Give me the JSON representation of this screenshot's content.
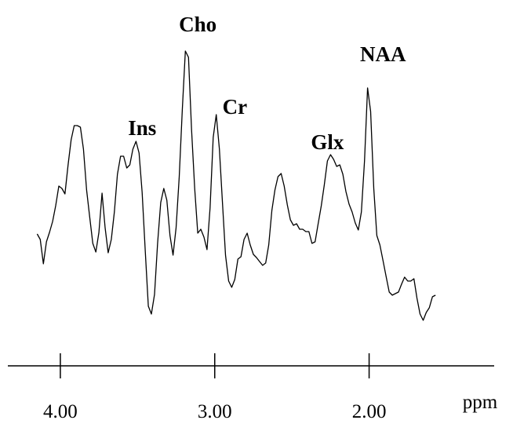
{
  "chart_data": {
    "type": "line",
    "x_label": "ppm",
    "annotations": [
      {
        "text": "Ins",
        "x": 3.47
      },
      {
        "text": "Cho",
        "x": 3.11
      },
      {
        "text": "Cr",
        "x": 2.87
      },
      {
        "text": "Glx",
        "x": 2.27
      },
      {
        "text": "NAA",
        "x": 1.91
      }
    ],
    "xlim": [
      4.34,
      1.19
    ],
    "xticks": [
      {
        "value": 4,
        "label": "4.00"
      },
      {
        "value": 3,
        "label": "3.00"
      },
      {
        "value": 2,
        "label": "2.00"
      }
    ],
    "ylim": [
      0,
      440
    ],
    "color": "#000000",
    "x": [
      4.15,
      4.13,
      4.11,
      4.09,
      4.07,
      4.05,
      4.03,
      4.01,
      3.99,
      3.97,
      3.95,
      3.93,
      3.91,
      3.89,
      3.87,
      3.85,
      3.83,
      3.81,
      3.79,
      3.77,
      3.75,
      3.73,
      3.71,
      3.69,
      3.67,
      3.65,
      3.63,
      3.61,
      3.59,
      3.57,
      3.55,
      3.53,
      3.51,
      3.49,
      3.47,
      3.45,
      3.43,
      3.41,
      3.39,
      3.37,
      3.35,
      3.33,
      3.31,
      3.29,
      3.27,
      3.25,
      3.23,
      3.21,
      3.19,
      3.17,
      3.15,
      3.13,
      3.11,
      3.09,
      3.07,
      3.05,
      3.03,
      3.01,
      2.99,
      2.97,
      2.95,
      2.93,
      2.91,
      2.89,
      2.87,
      2.85,
      2.83,
      2.81,
      2.79,
      2.77,
      2.75,
      2.73,
      2.71,
      2.69,
      2.67,
      2.65,
      2.63,
      2.61,
      2.59,
      2.57,
      2.55,
      2.53,
      2.51,
      2.49,
      2.47,
      2.45,
      2.43,
      2.41,
      2.39,
      2.37,
      2.35,
      2.33,
      2.31,
      2.29,
      2.27,
      2.25,
      2.23,
      2.21,
      2.19,
      2.17,
      2.15,
      2.13,
      2.11,
      2.09,
      2.07,
      2.05,
      2.03,
      2.01,
      1.99,
      1.97,
      1.95,
      1.93,
      1.91,
      1.89,
      1.87,
      1.85,
      1.83,
      1.81,
      1.79,
      1.77,
      1.75,
      1.73,
      1.71,
      1.69,
      1.67,
      1.65,
      1.63,
      1.61,
      1.59,
      1.57
    ],
    "values": [
      168,
      161,
      130,
      158,
      170,
      184,
      204,
      229,
      226,
      219,
      256,
      288,
      306,
      306,
      304,
      276,
      224,
      190,
      156,
      145,
      170,
      220,
      176,
      144,
      161,
      196,
      244,
      267,
      267,
      252,
      256,
      276,
      286,
      271,
      221,
      146,
      76,
      66,
      91,
      156,
      208,
      226,
      211,
      166,
      141,
      176,
      241,
      326,
      401,
      393,
      301,
      226,
      169,
      174,
      164,
      148,
      201,
      291,
      320,
      276,
      208,
      141,
      108,
      100,
      110,
      136,
      139,
      161,
      169,
      154,
      142,
      138,
      133,
      128,
      131,
      154,
      198,
      224,
      241,
      245,
      229,
      205,
      186,
      179,
      181,
      174,
      174,
      171,
      171,
      156,
      158,
      181,
      204,
      231,
      261,
      269,
      263,
      254,
      256,
      244,
      222,
      206,
      196,
      182,
      173,
      196,
      261,
      354,
      324,
      226,
      166,
      154,
      134,
      114,
      94,
      90,
      92,
      94,
      104,
      113,
      108,
      108,
      111,
      86,
      66,
      58,
      68,
      74,
      88,
      90
    ]
  }
}
